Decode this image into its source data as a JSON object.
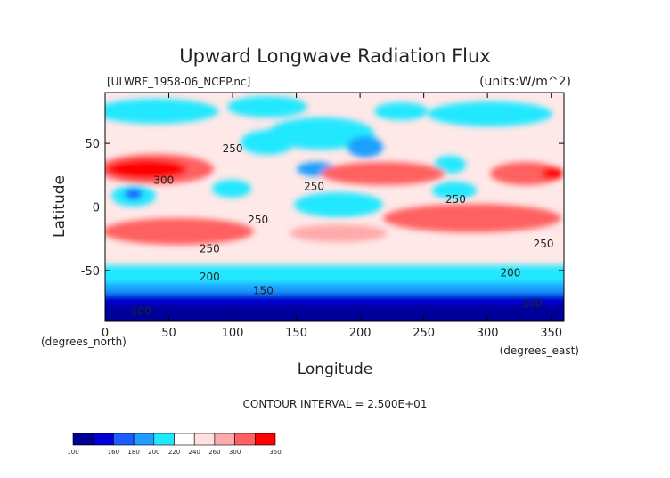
{
  "chart_data": {
    "type": "heatmap",
    "title": "Upward Longwave Radiation Flux",
    "file_label": "[ULWRF_1958-06_NCEP.nc]",
    "units_label": "(units:W/m^2)",
    "xlabel": "Longitude",
    "ylabel": "Latitude",
    "x_unit_label": "(degrees_east)",
    "y_unit_label": "(degrees_north)",
    "xlim": [
      0,
      360
    ],
    "ylim": [
      -90,
      90
    ],
    "x_ticks": [
      0,
      50,
      100,
      150,
      200,
      250,
      300,
      350
    ],
    "y_ticks": [
      -50,
      0,
      50
    ],
    "contour_interval_label": "CONTOUR INTERVAL = 2.500E+01",
    "colorbar": {
      "tick_labels": [
        "100",
        "160",
        "180",
        "200",
        "220",
        "240",
        "260",
        "300",
        "350"
      ],
      "colors": [
        "#000099",
        "#0000d6",
        "#1d5dff",
        "#1e9fff",
        "#22e8ff",
        "#ffffff",
        "#ffe0e0",
        "#ffaaaa",
        "#ff6060",
        "#ff0000"
      ]
    },
    "contour_labels": [
      {
        "text": "250",
        "lon": 100,
        "lat": 46
      },
      {
        "text": "300",
        "lon": 46,
        "lat": 21
      },
      {
        "text": "250",
        "lon": 164,
        "lat": 16
      },
      {
        "text": "250",
        "lon": 120,
        "lat": -10
      },
      {
        "text": "250",
        "lon": 275,
        "lat": 6
      },
      {
        "text": "250",
        "lon": 344,
        "lat": -29
      },
      {
        "text": "250",
        "lon": 82,
        "lat": -33
      },
      {
        "text": "200",
        "lon": 82,
        "lat": -55
      },
      {
        "text": "200",
        "lon": 318,
        "lat": -52
      },
      {
        "text": "150",
        "lon": 124,
        "lat": -66
      },
      {
        "text": "100",
        "lon": 28,
        "lat": -82
      },
      {
        "text": "100",
        "lon": 335,
        "lat": -76
      }
    ]
  }
}
